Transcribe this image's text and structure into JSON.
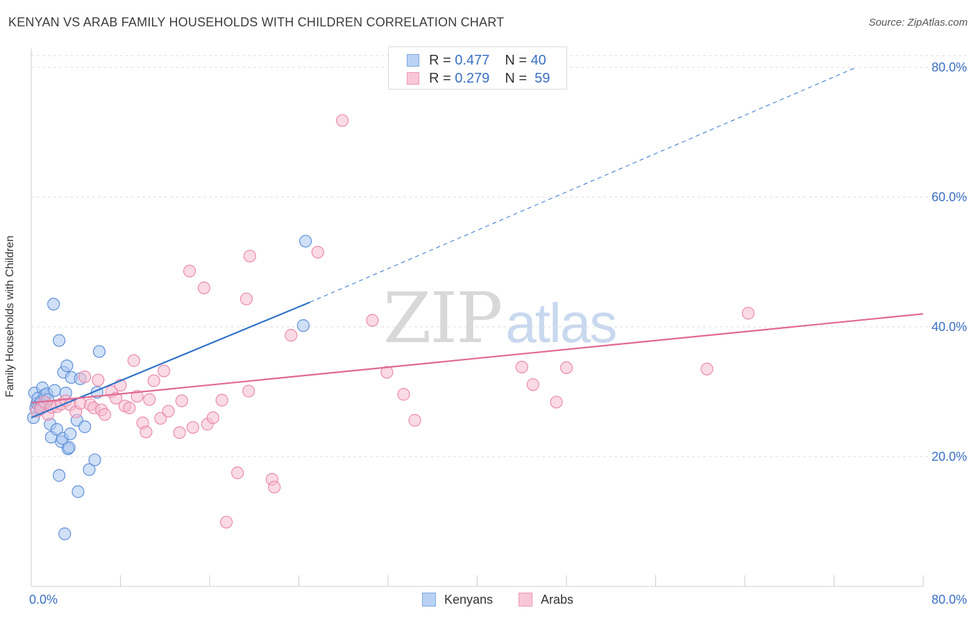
{
  "header": {
    "title": "KENYAN VS ARAB FAMILY HOUSEHOLDS WITH CHILDREN CORRELATION CHART",
    "source": "Source: ZipAtlas.com"
  },
  "watermark": {
    "zip": "ZIP",
    "atlas": "atlas"
  },
  "legend_top": {
    "rows": [
      {
        "r_label": "R =",
        "r_value": "0.477",
        "n_label": "N =",
        "n_value": "40"
      },
      {
        "r_label": "R =",
        "r_value": "0.279",
        "n_label": "N =",
        "n_value": "59"
      }
    ]
  },
  "legend_bottom": {
    "kenyans": "Kenyans",
    "arabs": "Arabs"
  },
  "colors": {
    "blue_fill": "#a9c7f0",
    "blue_stroke": "#5f8fd6",
    "blue_line": "#2f72c9",
    "pink_fill": "#f6bccf",
    "pink_stroke": "#e98aab",
    "pink_line": "#e06890",
    "grid": "#dddddd",
    "tick_text": "#3a6fc2"
  },
  "chart_data": {
    "type": "scatter",
    "title": "KENYAN VS ARAB FAMILY HOUSEHOLDS WITH CHILDREN CORRELATION CHART",
    "xlabel": "",
    "ylabel": "Family Households with Children",
    "xlim": [
      0,
      80
    ],
    "ylim": [
      0,
      82
    ],
    "x_tick_labels": [
      "0.0%",
      "80.0%"
    ],
    "y_ticks": [
      {
        "value": 20,
        "label": "20.0%"
      },
      {
        "value": 40,
        "label": "40.0%"
      },
      {
        "value": 60,
        "label": "60.0%"
      },
      {
        "value": 80,
        "label": "80.0%"
      }
    ],
    "series": [
      {
        "name": "Kenyans",
        "color": "#5f8fd6",
        "r": 0.477,
        "n": 40,
        "points": [
          [
            0.2,
            26.0
          ],
          [
            0.3,
            29.8
          ],
          [
            0.4,
            27.5
          ],
          [
            0.5,
            28.2
          ],
          [
            0.6,
            29.0
          ],
          [
            0.7,
            28.0
          ],
          [
            0.8,
            27.3
          ],
          [
            0.9,
            28.5
          ],
          [
            1.0,
            30.6
          ],
          [
            1.1,
            27.8
          ],
          [
            1.2,
            29.5
          ],
          [
            1.4,
            29.7
          ],
          [
            1.5,
            28.8
          ],
          [
            1.7,
            25.0
          ],
          [
            1.8,
            23.0
          ],
          [
            2.0,
            43.5
          ],
          [
            2.1,
            30.2
          ],
          [
            2.3,
            24.2
          ],
          [
            2.5,
            37.9
          ],
          [
            2.5,
            17.1
          ],
          [
            2.7,
            22.3
          ],
          [
            2.8,
            22.8
          ],
          [
            2.9,
            33.0
          ],
          [
            3.0,
            8.1
          ],
          [
            3.1,
            29.8
          ],
          [
            3.2,
            34.0
          ],
          [
            3.3,
            21.2
          ],
          [
            3.4,
            21.4
          ],
          [
            3.5,
            23.5
          ],
          [
            3.6,
            32.2
          ],
          [
            4.1,
            25.6
          ],
          [
            4.2,
            14.6
          ],
          [
            4.4,
            32.0
          ],
          [
            4.8,
            24.6
          ],
          [
            5.2,
            18.0
          ],
          [
            5.7,
            19.5
          ],
          [
            5.9,
            29.9
          ],
          [
            6.1,
            36.2
          ],
          [
            24.6,
            53.2
          ],
          [
            24.4,
            40.2
          ]
        ],
        "trend": {
          "x0": 0,
          "y0": 26.0,
          "x1": 25,
          "y1": 43.8,
          "dashed_to_x": 74,
          "dashed_to_y": 80.0
        }
      },
      {
        "name": "Arabs",
        "color": "#e98aab",
        "r": 0.279,
        "n": 59,
        "points": [
          [
            0.5,
            27.0
          ],
          [
            0.9,
            27.5
          ],
          [
            1.2,
            28.4
          ],
          [
            1.5,
            26.5
          ],
          [
            1.8,
            27.6
          ],
          [
            2.3,
            27.7
          ],
          [
            2.7,
            28.1
          ],
          [
            3.1,
            28.6
          ],
          [
            3.5,
            28.0
          ],
          [
            4.0,
            26.9
          ],
          [
            4.4,
            28.2
          ],
          [
            4.8,
            32.3
          ],
          [
            5.3,
            28.0
          ],
          [
            5.6,
            27.5
          ],
          [
            6.0,
            31.8
          ],
          [
            6.3,
            27.2
          ],
          [
            6.6,
            26.5
          ],
          [
            7.2,
            30.0
          ],
          [
            7.6,
            29.0
          ],
          [
            8.0,
            31.0
          ],
          [
            8.4,
            27.8
          ],
          [
            8.8,
            27.5
          ],
          [
            9.2,
            34.8
          ],
          [
            9.5,
            29.3
          ],
          [
            10.0,
            25.2
          ],
          [
            10.3,
            23.8
          ],
          [
            10.6,
            28.8
          ],
          [
            11.0,
            31.7
          ],
          [
            11.6,
            25.9
          ],
          [
            11.9,
            33.2
          ],
          [
            12.3,
            27.0
          ],
          [
            13.3,
            23.7
          ],
          [
            13.5,
            28.6
          ],
          [
            14.2,
            48.6
          ],
          [
            14.5,
            24.5
          ],
          [
            15.5,
            46.0
          ],
          [
            15.8,
            25.0
          ],
          [
            16.3,
            26.0
          ],
          [
            17.1,
            28.7
          ],
          [
            17.5,
            9.9
          ],
          [
            18.5,
            17.5
          ],
          [
            19.3,
            44.3
          ],
          [
            19.6,
            50.9
          ],
          [
            19.5,
            30.1
          ],
          [
            21.6,
            16.5
          ],
          [
            21.8,
            15.3
          ],
          [
            23.3,
            38.7
          ],
          [
            25.7,
            51.5
          ],
          [
            27.9,
            71.8
          ],
          [
            30.6,
            41.0
          ],
          [
            31.9,
            33.0
          ],
          [
            33.4,
            29.6
          ],
          [
            34.4,
            25.6
          ],
          [
            44.0,
            33.8
          ],
          [
            45.0,
            31.1
          ],
          [
            47.1,
            28.4
          ],
          [
            48.0,
            33.7
          ],
          [
            60.6,
            33.5
          ],
          [
            64.3,
            42.1
          ]
        ],
        "trend": {
          "x0": 0,
          "y0": 28.3,
          "x1": 80,
          "y1": 42.0
        }
      }
    ]
  }
}
